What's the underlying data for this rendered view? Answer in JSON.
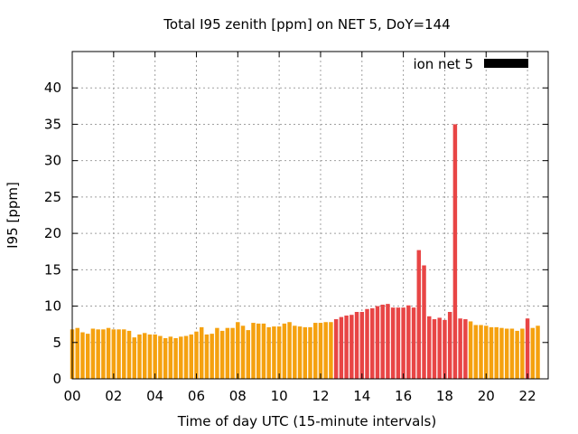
{
  "chart_data": {
    "type": "bar",
    "title": "Total I95 zenith [ppm] on NET 5, DoY=144",
    "xlabel": "Time of day UTC (15-minute intervals)",
    "ylabel": "I95 [ppm]",
    "xlim": [
      0,
      23
    ],
    "ylim": [
      0,
      45
    ],
    "xticks": [
      {
        "value": 0,
        "label": "00"
      },
      {
        "value": 2,
        "label": "02"
      },
      {
        "value": 4,
        "label": "04"
      },
      {
        "value": 6,
        "label": "06"
      },
      {
        "value": 8,
        "label": "08"
      },
      {
        "value": 10,
        "label": "10"
      },
      {
        "value": 12,
        "label": "12"
      },
      {
        "value": 14,
        "label": "14"
      },
      {
        "value": 16,
        "label": "16"
      },
      {
        "value": 18,
        "label": "18"
      },
      {
        "value": 20,
        "label": "20"
      },
      {
        "value": 22,
        "label": "22"
      }
    ],
    "yticks": [
      0,
      5,
      10,
      15,
      20,
      25,
      30,
      35,
      40
    ],
    "grid": true,
    "legend": {
      "label": "ion net 5",
      "position": "top-right",
      "color": "#000000"
    },
    "interval_hours": 0.25,
    "colors": {
      "normal": "#f5a10f",
      "elevated": "#e84545",
      "legend": "#000000"
    },
    "series": [
      {
        "values": [
          6.8,
          7.0,
          6.4,
          6.2,
          6.9,
          6.8,
          6.8,
          7.0,
          6.8,
          6.8,
          6.8,
          6.6,
          5.7,
          6.1,
          6.3,
          6.1,
          6.1,
          5.9,
          5.6,
          5.8,
          5.6,
          5.8,
          5.9,
          6.1,
          6.5,
          7.1,
          6.1,
          6.2,
          7.0,
          6.6,
          7.0,
          7.0,
          7.8,
          7.3,
          6.7,
          7.7,
          7.6,
          7.6,
          7.1,
          7.2,
          7.2,
          7.6,
          7.8,
          7.3,
          7.2,
          7.1,
          7.1,
          7.7,
          7.7,
          7.8,
          7.8,
          8.2,
          8.5,
          8.7,
          8.8,
          9.2,
          9.2,
          9.6,
          9.7,
          10.0,
          10.2,
          10.3,
          9.8,
          9.8,
          9.8,
          10.1,
          9.8,
          17.7,
          15.6,
          8.6,
          8.2,
          8.4,
          8.1,
          9.2,
          35.0,
          8.3,
          8.2,
          7.9,
          7.4,
          7.4,
          7.3,
          7.1,
          7.1,
          7.0,
          6.9,
          6.9,
          6.6,
          6.9,
          8.3,
          7.0,
          7.3
        ],
        "status": [
          "n",
          "n",
          "n",
          "n",
          "n",
          "n",
          "n",
          "n",
          "n",
          "n",
          "n",
          "n",
          "n",
          "n",
          "n",
          "n",
          "n",
          "n",
          "n",
          "n",
          "n",
          "n",
          "n",
          "n",
          "n",
          "n",
          "n",
          "n",
          "n",
          "n",
          "n",
          "n",
          "n",
          "n",
          "n",
          "n",
          "n",
          "n",
          "n",
          "n",
          "n",
          "n",
          "n",
          "n",
          "n",
          "n",
          "n",
          "n",
          "n",
          "n",
          "n",
          "e",
          "e",
          "e",
          "e",
          "e",
          "e",
          "e",
          "e",
          "e",
          "e",
          "e",
          "e",
          "e",
          "e",
          "e",
          "e",
          "e",
          "e",
          "e",
          "e",
          "e",
          "e",
          "e",
          "e",
          "e",
          "e",
          "n",
          "n",
          "n",
          "n",
          "n",
          "n",
          "n",
          "n",
          "n",
          "n",
          "n",
          "e",
          "n",
          "n"
        ]
      }
    ]
  }
}
